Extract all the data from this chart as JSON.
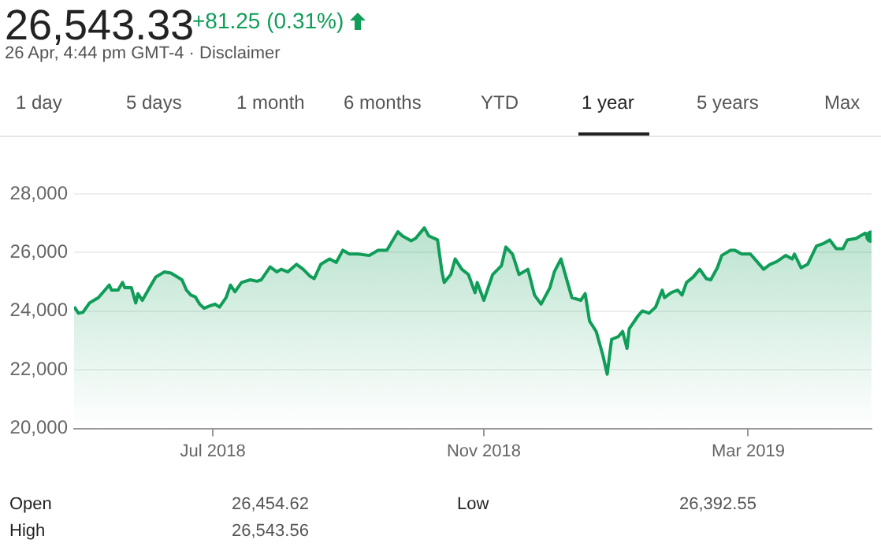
{
  "chart_data": {
    "type": "area",
    "title": "26,543.33",
    "subtitle": "+81.25 (0.31%)",
    "annotations": [
      "26 Apr, 4:44 pm GMT-4 · Disclaimer",
      "1 day",
      "5 days",
      "1 month",
      "6 months",
      "YTD",
      "1 year",
      "5 years",
      "Max",
      "Open",
      "26,454.62",
      "Low",
      "26,392.55",
      "High",
      "26,543.56"
    ],
    "x": [
      "2018-04-29",
      "2018-05-01",
      "2018-05-03",
      "2018-05-06",
      "2018-05-08",
      "2018-05-10",
      "2018-05-13",
      "2018-05-15",
      "2018-05-16",
      "2018-05-19",
      "2018-05-21",
      "2018-05-22",
      "2018-05-25",
      "2018-05-27",
      "2018-05-28",
      "2018-05-30",
      "2018-06-02",
      "2018-06-05",
      "2018-06-09",
      "2018-06-12",
      "2018-06-17",
      "2018-06-19",
      "2018-06-21",
      "2018-06-23",
      "2018-06-25",
      "2018-06-27",
      "2018-06-30",
      "2018-07-02",
      "2018-07-04",
      "2018-07-07",
      "2018-07-09",
      "2018-07-11",
      "2018-07-14",
      "2018-07-18",
      "2018-07-21",
      "2018-07-23",
      "2018-07-27",
      "2018-07-30",
      "2018-08-01",
      "2018-08-04",
      "2018-08-08",
      "2018-08-11",
      "2018-08-14",
      "2018-08-16",
      "2018-08-19",
      "2018-08-23",
      "2018-08-26",
      "2018-08-29",
      "2018-09-01",
      "2018-09-05",
      "2018-09-10",
      "2018-09-14",
      "2018-09-18",
      "2018-09-23",
      "2018-09-25",
      "2018-09-29",
      "2018-10-01",
      "2018-10-05",
      "2018-10-07",
      "2018-10-11",
      "2018-10-13",
      "2018-10-14",
      "2018-10-17",
      "2018-10-19",
      "2018-10-22",
      "2018-10-25",
      "2018-10-28",
      "2018-10-29",
      "2018-11-01",
      "2018-11-05",
      "2018-11-09",
      "2018-11-11",
      "2018-11-14",
      "2018-11-17",
      "2018-11-21",
      "2018-11-24",
      "2018-11-27",
      "2018-12-01",
      "2018-12-03",
      "2018-12-06",
      "2018-12-09",
      "2018-12-11",
      "2018-12-15",
      "2018-12-17",
      "2018-12-19",
      "2018-12-22",
      "2018-12-25",
      "2018-12-27",
      "2018-12-29",
      "2019-01-01",
      "2019-01-03",
      "2019-01-05",
      "2019-01-06",
      "2019-01-10",
      "2019-01-12",
      "2019-01-15",
      "2019-01-18",
      "2019-01-21",
      "2019-01-22",
      "2019-01-25",
      "2019-01-28",
      "2019-01-30",
      "2019-02-01",
      "2019-02-04",
      "2019-02-07",
      "2019-02-10",
      "2019-02-12",
      "2019-02-15",
      "2019-02-17",
      "2019-02-21",
      "2019-02-23",
      "2019-02-26",
      "2019-03-02",
      "2019-03-05",
      "2019-03-08",
      "2019-03-11",
      "2019-03-14",
      "2019-03-18",
      "2019-03-21",
      "2019-03-22",
      "2019-03-25",
      "2019-03-28",
      "2019-04-01",
      "2019-04-04",
      "2019-04-07",
      "2019-04-10",
      "2019-04-13",
      "2019-04-15",
      "2019-04-19",
      "2019-04-23",
      "2019-04-26"
    ],
    "series": [
      {
        "color": "#0f9d58",
        "values": [
          24150,
          23930,
          23960,
          24280,
          24370,
          24460,
          24720,
          24890,
          24720,
          24720,
          24980,
          24800,
          24800,
          24280,
          24600,
          24370,
          24770,
          25160,
          25340,
          25300,
          25070,
          24720,
          24550,
          24490,
          24240,
          24100,
          24190,
          24240,
          24140,
          24460,
          24890,
          24660,
          24980,
          25070,
          25020,
          25070,
          25510,
          25340,
          25430,
          25340,
          25600,
          25430,
          25200,
          25110,
          25600,
          25780,
          25660,
          26080,
          25950,
          25950,
          25900,
          26080,
          26080,
          26710,
          26570,
          26400,
          26480,
          26840,
          26570,
          26430,
          25340,
          24980,
          25250,
          25780,
          25430,
          25250,
          24630,
          24980,
          24370,
          25250,
          25550,
          26190,
          25950,
          25250,
          25430,
          24550,
          24240,
          24800,
          25340,
          25780,
          24980,
          24460,
          24370,
          24600,
          23660,
          23310,
          22510,
          21850,
          23040,
          23130,
          23310,
          22730,
          23400,
          23840,
          24010,
          23930,
          24140,
          24720,
          24460,
          24630,
          24720,
          24550,
          24980,
          25160,
          25430,
          25110,
          25070,
          25480,
          25900,
          26080,
          26080,
          25950,
          25950,
          25690,
          25430,
          25600,
          25690,
          25900,
          25780,
          25950,
          25480,
          25600,
          26220,
          26300,
          26430,
          26130,
          26130,
          26430,
          26480,
          26660,
          26540
        ]
      }
    ],
    "xlim": [
      "2018-04-29",
      "2019-04-26"
    ],
    "xticks": [
      {
        "value": "2018-07-01",
        "label": "Jul 2018"
      },
      {
        "value": "2018-11-01",
        "label": "Nov 2018"
      },
      {
        "value": "2019-03-01",
        "label": "Mar 2019"
      }
    ],
    "ylim": [
      20000,
      28000
    ],
    "yticks": [
      {
        "value": 20000,
        "label": "20,000"
      },
      {
        "value": 22000,
        "label": "22,000"
      },
      {
        "value": 24000,
        "label": "24,000"
      },
      {
        "value": 26000,
        "label": "26,000"
      },
      {
        "value": 28000,
        "label": "28,000"
      }
    ],
    "grid": "y",
    "marker": "none",
    "line_style": "solid"
  }
}
